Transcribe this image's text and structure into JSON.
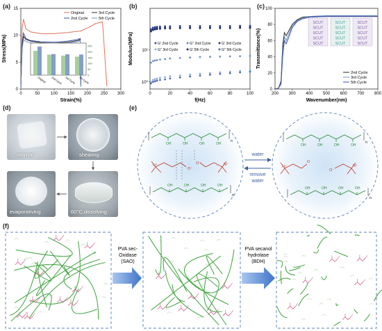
{
  "panel_labels": {
    "a": "(a)",
    "b": "(b)",
    "c": "(c)",
    "d": "(d)",
    "e": "(e)",
    "f": "(f)"
  },
  "chart_data": [
    {
      "id": "a",
      "type": "line",
      "xlabel": "Strain(%)",
      "ylabel": "Stress(MPa)",
      "xlim": [
        0,
        300
      ],
      "ylim": [
        0,
        15
      ],
      "xticks": [
        "0",
        "50",
        "100",
        "150",
        "200",
        "250",
        "300"
      ],
      "yticks": [
        "0",
        "5",
        "10",
        "15"
      ],
      "legend_position": "top-right",
      "colors": {
        "Original": "#e0735a",
        "2ndCycle": "#3a4fa8",
        "3rdCycle": "#2a2a2a",
        "5thCycle": "#6a8fc8"
      },
      "series": [
        {
          "name": "Original",
          "x": [
            0,
            4,
            8,
            15,
            30,
            60,
            100,
            140,
            180,
            205,
            225,
            245,
            258
          ],
          "y": [
            0,
            11.5,
            13.0,
            11.2,
            10.6,
            10.3,
            10.3,
            10.5,
            10.8,
            11.5,
            12.2,
            12.5,
            0.5
          ]
        },
        {
          "name": "2ndCycle",
          "x": [
            0,
            4,
            8,
            15,
            30,
            60,
            100,
            140,
            170,
            178,
            180
          ],
          "y": [
            0,
            8.5,
            10.4,
            9.4,
            9.0,
            8.8,
            8.7,
            8.9,
            9.2,
            9.4,
            0.8
          ]
        },
        {
          "name": "3rdCycle",
          "x": [
            0,
            4,
            8,
            15,
            30,
            60,
            100,
            140,
            170,
            178,
            180
          ],
          "y": [
            0,
            8.0,
            9.8,
            9.2,
            8.9,
            8.6,
            8.5,
            8.7,
            9.0,
            9.2,
            0.6
          ]
        },
        {
          "name": "5thCycle",
          "x": [
            0,
            4,
            8,
            15,
            30,
            60,
            100,
            140,
            170,
            178,
            180
          ],
          "y": [
            0,
            7.5,
            9.2,
            8.8,
            8.6,
            8.4,
            8.3,
            8.5,
            8.8,
            9.0,
            0.4
          ]
        }
      ],
      "legend_labels": {
        "Original": "Original",
        "2ndCycle": "2nd Cycle",
        "3rdCycle": "3rd Cycle",
        "5thCycle": "5th Cycle"
      },
      "inset": {
        "type": "bar",
        "categories": [
          "Original",
          "2nd Cycle",
          "3rd Cycle",
          "5th Cycle"
        ],
        "left_values": [
          12.5,
          10.5,
          10.0,
          9.5
        ],
        "right_values": [
          245,
          180,
          178,
          176
        ],
        "left_ylim": [
          0,
          15
        ],
        "right_ylim": [
          0,
          250
        ],
        "right_ticks": [
          "0",
          "50",
          "100",
          "150",
          "200",
          "250"
        ],
        "left_color": "#a8cf9a",
        "right_color": "#5a7fb8"
      }
    },
    {
      "id": "b",
      "type": "scatter",
      "xlabel": "f(Hz)",
      "ylabel": "Modulus(MPa)",
      "xlim": [
        0,
        100
      ],
      "ylim_log": [
        0.6,
        200
      ],
      "xticks": [
        "0",
        "20",
        "40",
        "60",
        "80",
        "100"
      ],
      "yticks": [
        "10⁰",
        "10¹"
      ],
      "legend_labels": [
        "G′ 2nd Cycle",
        "G″ 2nd Cycle",
        "G′ 3rd Cycle",
        "G″ 3rd Cycle",
        "G′ 5th Cycle",
        "G″ 5th Cycle"
      ],
      "colors": [
        "#3a4fa8",
        "#6a8fc8",
        "#2a3a7a",
        "#8fb0e0",
        "#1a2560",
        "#4a6ab0"
      ],
      "series": [
        {
          "name": "G′ 2nd Cycle",
          "x": [
            1,
            3,
            5,
            7,
            10,
            15,
            20,
            30,
            40,
            50,
            60,
            70,
            80,
            90,
            100
          ],
          "y": [
            45,
            50,
            52,
            53,
            54,
            55,
            55,
            56,
            56,
            56,
            56,
            56,
            56,
            57,
            57
          ]
        },
        {
          "name": "G′ 3rd Cycle",
          "x": [
            1,
            3,
            5,
            7,
            10,
            15,
            20,
            30,
            40,
            50,
            60,
            70,
            80,
            90,
            100
          ],
          "y": [
            42,
            46,
            48,
            49,
            50,
            51,
            51,
            52,
            52,
            52,
            52,
            52,
            52,
            53,
            53
          ]
        },
        {
          "name": "G′ 5th Cycle",
          "x": [
            1,
            3,
            5,
            7,
            10,
            15,
            20,
            30,
            40,
            50,
            60,
            70,
            80,
            90,
            100
          ],
          "y": [
            38,
            42,
            44,
            45,
            46,
            47,
            47,
            48,
            48,
            48,
            48,
            48,
            48,
            49,
            49
          ]
        },
        {
          "name": "G″ 2nd Cycle",
          "x": [
            1,
            3,
            5,
            7,
            10,
            15,
            20,
            30,
            40,
            50,
            60,
            70,
            80,
            90,
            100
          ],
          "y": [
            4.0,
            4.5,
            4.7,
            4.8,
            5.0,
            5.2,
            5.4,
            5.6,
            5.8,
            6.0,
            6.1,
            6.2,
            6.3,
            6.4,
            6.5
          ]
        },
        {
          "name": "G″ 3rd Cycle",
          "x": [
            1,
            3,
            5,
            7,
            10,
            15,
            20,
            30,
            40,
            50,
            60,
            70,
            80,
            90,
            100
          ],
          "y": [
            1.0,
            1.15,
            1.22,
            1.28,
            1.35,
            1.42,
            1.5,
            1.6,
            1.7,
            1.8,
            1.9,
            2.0,
            2.1,
            2.2,
            2.4
          ]
        },
        {
          "name": "G″ 5th Cycle",
          "x": [
            1,
            3,
            5,
            7,
            10,
            15,
            20,
            30,
            40,
            50,
            60,
            70,
            80,
            90,
            100
          ],
          "y": [
            0.9,
            1.0,
            1.05,
            1.1,
            1.15,
            1.2,
            1.28,
            1.38,
            1.48,
            1.58,
            1.68,
            1.78,
            1.88,
            1.98,
            2.1
          ]
        }
      ]
    },
    {
      "id": "c",
      "type": "line",
      "xlabel": "Wavenumber(nm)",
      "ylabel": "Transmittance(%)",
      "xlim": [
        200,
        800
      ],
      "ylim": [
        0,
        100
      ],
      "xticks": [
        "200",
        "300",
        "400",
        "500",
        "600",
        "700",
        "800"
      ],
      "yticks": [
        "0",
        "20",
        "40",
        "60",
        "80",
        "100"
      ],
      "legend_position": "bottom-right",
      "legend_labels": [
        "2nd Cycle",
        "3rd Cycle",
        "5th Cycle"
      ],
      "inset_text": "SCUT",
      "colors": [
        "#2a2a2a",
        "#6a8fc8",
        "#3a4fa8"
      ],
      "series": [
        {
          "name": "2nd Cycle",
          "x": [
            200,
            220,
            235,
            245,
            255,
            265,
            280,
            300,
            330,
            360,
            400,
            500,
            600,
            700,
            800
          ],
          "y": [
            0,
            1,
            10,
            55,
            70,
            66,
            72,
            80,
            86,
            89,
            90,
            90,
            90,
            90,
            90
          ]
        },
        {
          "name": "3rd Cycle",
          "x": [
            200,
            220,
            235,
            245,
            255,
            265,
            280,
            300,
            330,
            360,
            400,
            500,
            600,
            700,
            800
          ],
          "y": [
            0,
            1,
            8,
            48,
            65,
            60,
            68,
            78,
            85,
            88,
            90,
            91,
            91,
            91,
            91
          ]
        },
        {
          "name": "5th Cycle",
          "x": [
            200,
            220,
            235,
            245,
            255,
            265,
            280,
            300,
            330,
            360,
            400,
            500,
            600,
            700,
            800
          ],
          "y": [
            0,
            1,
            6,
            42,
            60,
            56,
            64,
            76,
            84,
            87,
            89,
            90,
            90,
            90,
            90
          ]
        }
      ]
    }
  ],
  "panel_d": {
    "captions": [
      "original",
      "shearing",
      "evaporativing",
      "60°C,dissolving"
    ]
  },
  "panel_e": {
    "arrow_top": "water",
    "arrow_bottom_1": "remove",
    "arrow_bottom_2": "water",
    "oh": "OH",
    "o_minus": "O⁻",
    "o": "O",
    "n_plus": "N⁺",
    "n": "n"
  },
  "panel_f": {
    "arrow1_lines": [
      "PVA sec-",
      "Oxidase",
      "(SAO)"
    ],
    "arrow2_lines": [
      "PVA secanol",
      "hydrolase",
      "(BDH)"
    ]
  }
}
